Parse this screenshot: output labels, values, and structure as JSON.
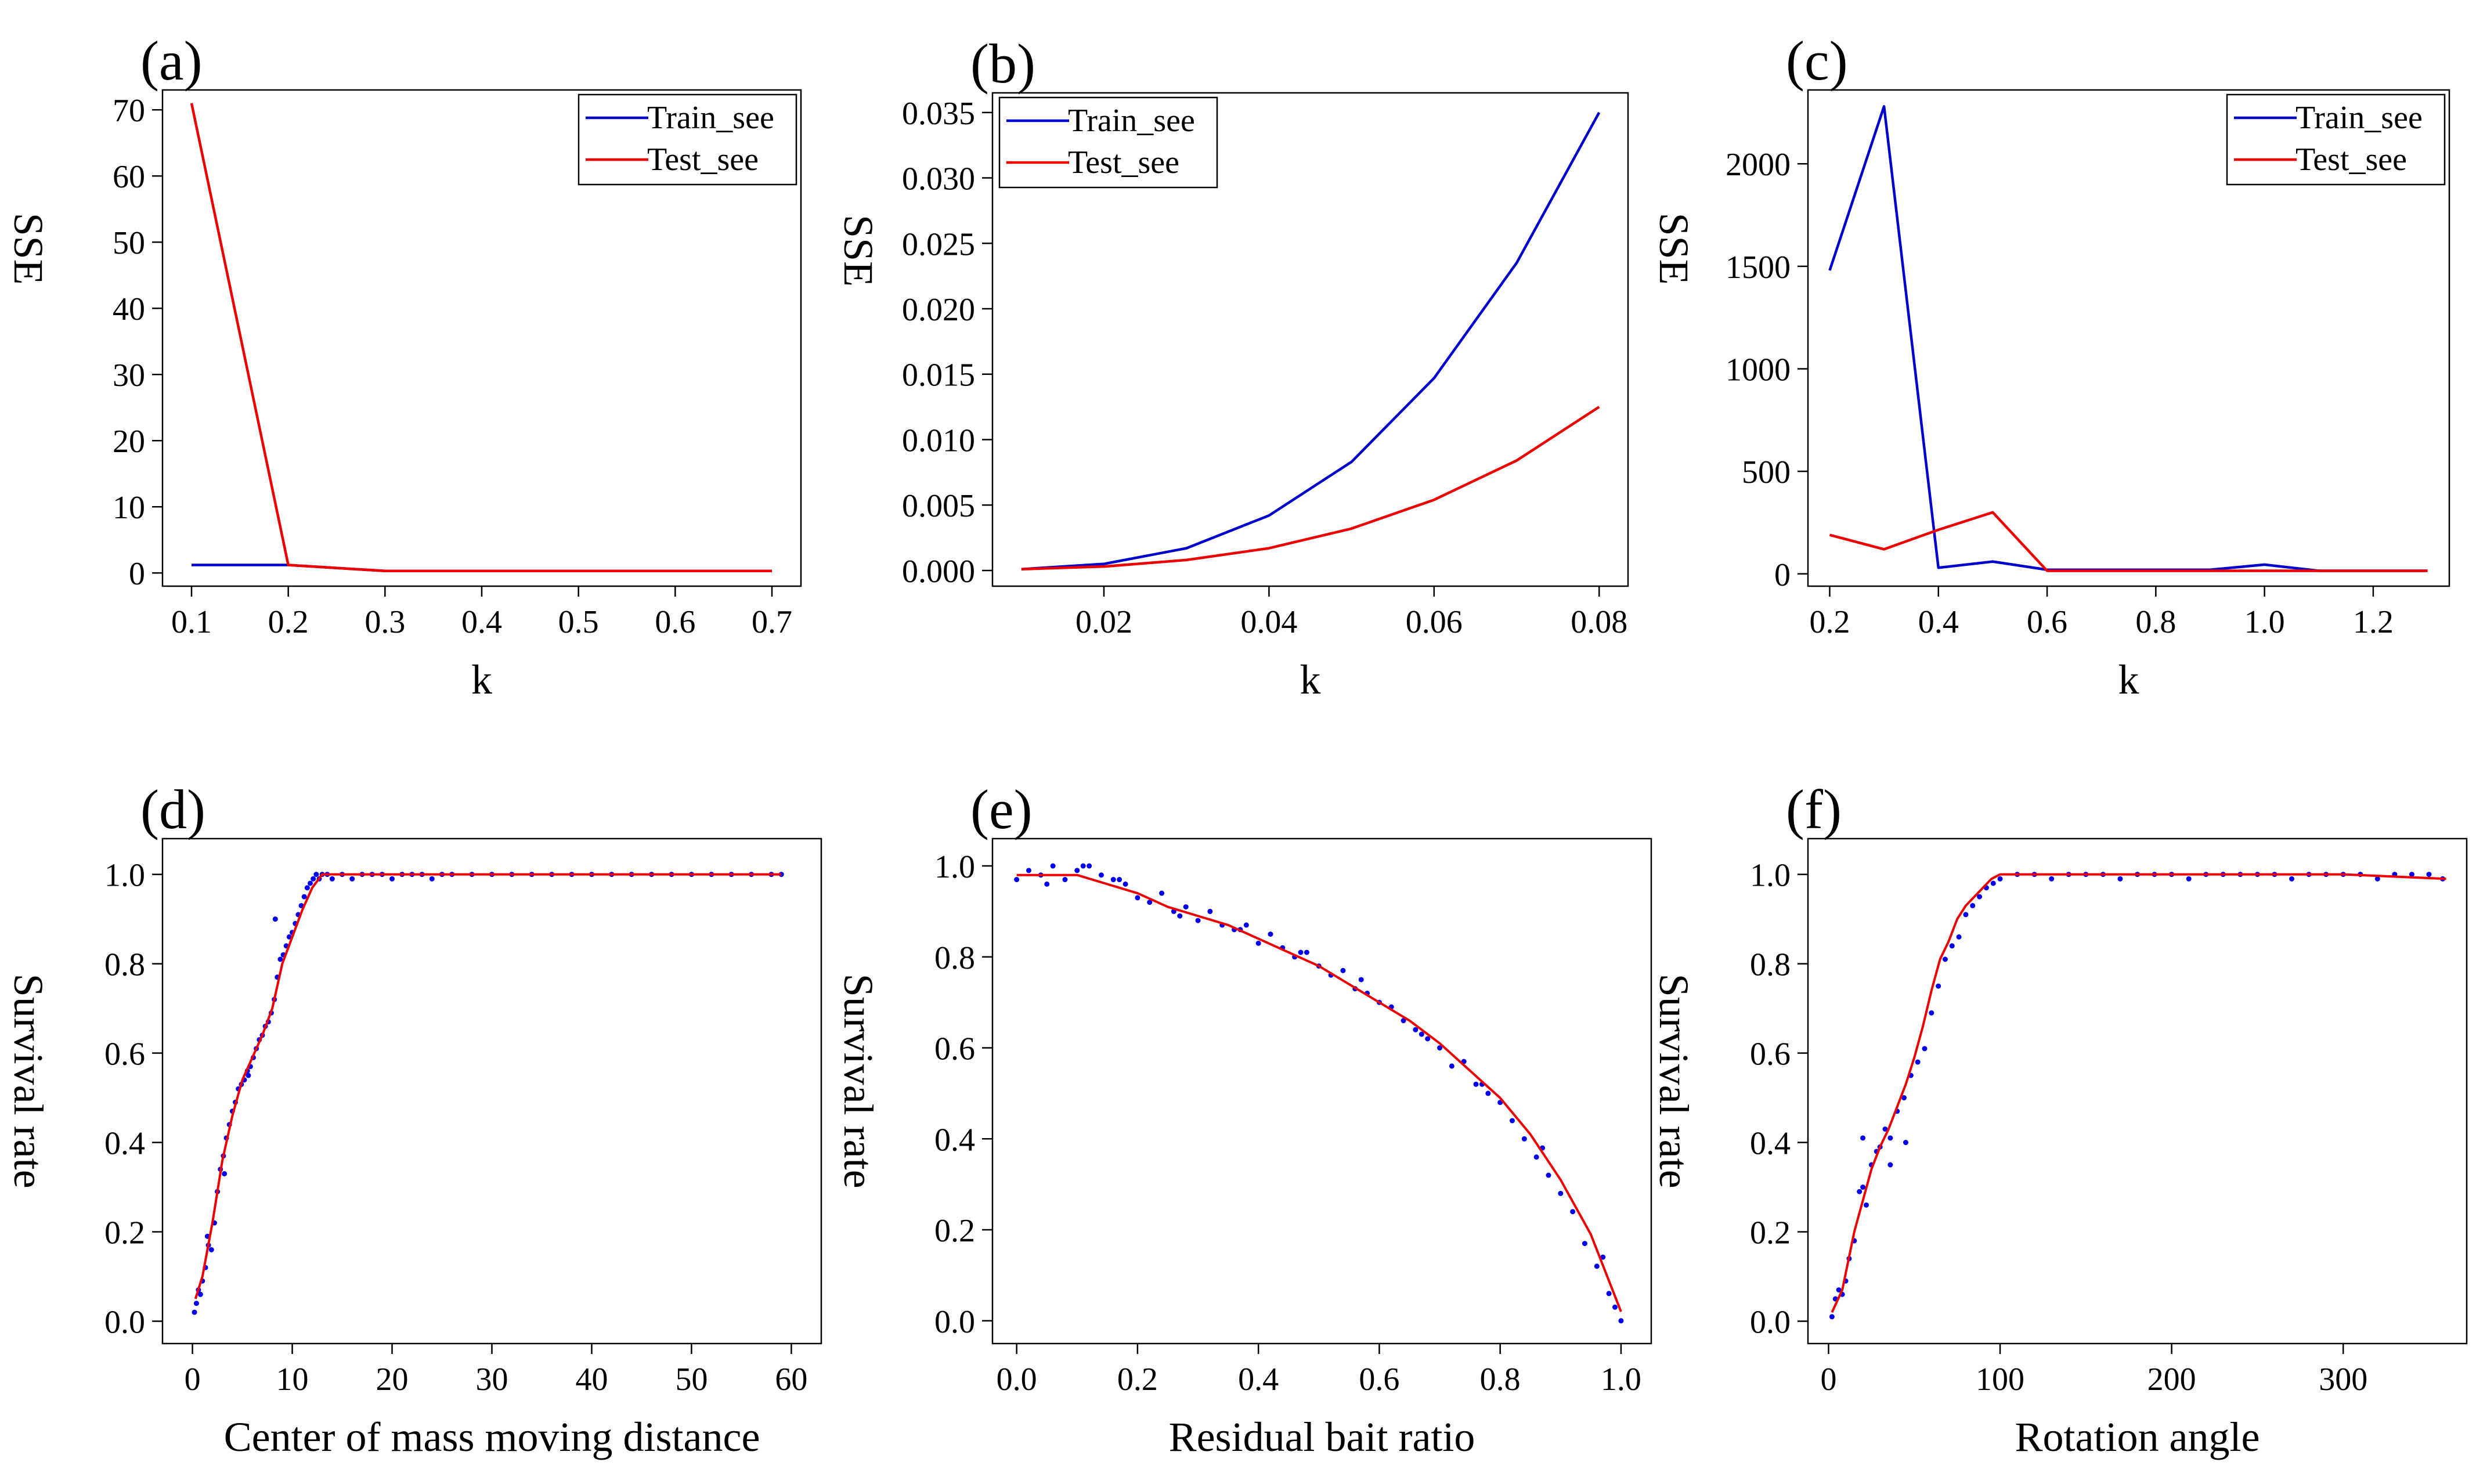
{
  "chart_data": [
    {
      "panel": "(a)",
      "type": "line",
      "xlabel": "k",
      "ylabel": "SSE",
      "xlim": [
        0.07,
        0.73
      ],
      "ylim": [
        -2,
        73
      ],
      "xticks": [
        0.1,
        0.2,
        0.3,
        0.4,
        0.5,
        0.6,
        0.7
      ],
      "xtick_labels": [
        "0.1",
        "0.2",
        "0.3",
        "0.4",
        "0.5",
        "0.6",
        "0.7"
      ],
      "yticks": [
        0,
        10,
        20,
        30,
        40,
        50,
        60,
        70
      ],
      "ytick_labels": [
        "0",
        "10",
        "20",
        "30",
        "40",
        "50",
        "60",
        "70"
      ],
      "legend": "top-right",
      "series": [
        {
          "name": "Train_see",
          "color": "#0000cc",
          "x": [
            0.1,
            0.2,
            0.3,
            0.4,
            0.5,
            0.6,
            0.7
          ],
          "values": [
            1.2,
            1.2,
            0.3,
            0.3,
            0.3,
            0.3,
            0.3
          ]
        },
        {
          "name": "Test_see",
          "color": "#ee0000",
          "x": [
            0.1,
            0.2,
            0.3,
            0.4,
            0.5,
            0.6,
            0.7
          ],
          "values": [
            71,
            1.2,
            0.3,
            0.3,
            0.3,
            0.3,
            0.3
          ]
        }
      ]
    },
    {
      "panel": "(b)",
      "type": "line",
      "xlabel": "k",
      "ylabel": "SSE",
      "xlim": [
        0.0065,
        0.0835
      ],
      "ylim": [
        -0.0012,
        0.0365
      ],
      "xticks": [
        0.02,
        0.04,
        0.06,
        0.08
      ],
      "xtick_labels": [
        "0.02",
        "0.04",
        "0.06",
        "0.08"
      ],
      "yticks": [
        0,
        0.005,
        0.01,
        0.015,
        0.02,
        0.025,
        0.03,
        0.035
      ],
      "ytick_labels": [
        "0.000",
        "0.005",
        "0.010",
        "0.015",
        "0.020",
        "0.025",
        "0.030",
        "0.035"
      ],
      "legend": "top-left",
      "series": [
        {
          "name": "Train_see",
          "color": "#0000cc",
          "x": [
            0.01,
            0.02,
            0.03,
            0.04,
            0.05,
            0.06,
            0.07,
            0.08
          ],
          "values": [
            0.0001,
            0.0005,
            0.0017,
            0.0042,
            0.0083,
            0.0147,
            0.0235,
            0.035
          ]
        },
        {
          "name": "Test_see",
          "color": "#ee0000",
          "x": [
            0.01,
            0.02,
            0.03,
            0.04,
            0.05,
            0.06,
            0.07,
            0.08
          ],
          "values": [
            0.0001,
            0.0003,
            0.0008,
            0.0017,
            0.0032,
            0.0054,
            0.0084,
            0.0125
          ]
        }
      ]
    },
    {
      "panel": "(c)",
      "type": "line",
      "xlabel": "k",
      "ylabel": "SSE",
      "xlim": [
        0.16,
        1.34
      ],
      "ylim": [
        -60,
        2360
      ],
      "xticks": [
        0.2,
        0.4,
        0.6,
        0.8,
        1.0,
        1.2
      ],
      "xtick_labels": [
        "0.2",
        "0.4",
        "0.6",
        "0.8",
        "1.0",
        "1.2"
      ],
      "yticks": [
        0,
        500,
        1000,
        1500,
        2000
      ],
      "ytick_labels": [
        "0",
        "500",
        "1000",
        "1500",
        "2000"
      ],
      "legend": "top-right",
      "series": [
        {
          "name": "Train_see",
          "color": "#0000cc",
          "x": [
            0.2,
            0.3,
            0.4,
            0.5,
            0.6,
            0.7,
            0.8,
            0.9,
            1.0,
            1.1,
            1.2,
            1.3
          ],
          "values": [
            1480,
            2280,
            30,
            60,
            20,
            20,
            20,
            20,
            45,
            15,
            15,
            15
          ]
        },
        {
          "name": "Test_see",
          "color": "#ee0000",
          "x": [
            0.2,
            0.3,
            0.4,
            0.5,
            0.6,
            0.7,
            0.8,
            0.9,
            1.0,
            1.1,
            1.2,
            1.3
          ],
          "values": [
            190,
            120,
            215,
            300,
            15,
            15,
            15,
            15,
            15,
            15,
            15,
            15
          ]
        }
      ]
    },
    {
      "panel": "(d)",
      "type": "scatter",
      "xlabel": "Center of mass moving distance",
      "ylabel": "Survival rate",
      "xlim": [
        -3,
        63
      ],
      "ylim": [
        -0.05,
        1.08
      ],
      "xticks": [
        0,
        10,
        20,
        30,
        40,
        50,
        60
      ],
      "xtick_labels": [
        "0",
        "10",
        "20",
        "30",
        "40",
        "50",
        "60"
      ],
      "yticks": [
        0,
        0.2,
        0.4,
        0.6,
        0.8,
        1.0
      ],
      "ytick_labels": [
        "0.0",
        "0.2",
        "0.4",
        "0.6",
        "0.8",
        "1.0"
      ],
      "fit_color": "#ee0000",
      "point_color": "#0000ee",
      "fit_x": [
        0.3,
        1,
        2,
        3,
        4,
        5,
        6,
        7,
        8,
        9,
        10,
        11,
        12,
        13,
        15,
        20,
        30,
        40,
        50,
        59
      ],
      "fit_y": [
        0.05,
        0.1,
        0.22,
        0.36,
        0.46,
        0.54,
        0.59,
        0.64,
        0.7,
        0.8,
        0.86,
        0.92,
        0.97,
        1.0,
        1.0,
        1.0,
        1.0,
        1.0,
        1.0,
        1.0
      ],
      "points_x": [
        0.2,
        0.4,
        0.6,
        0.8,
        1.0,
        1.3,
        1.6,
        1.9,
        2.2,
        2.5,
        2.8,
        3.1,
        3.4,
        3.7,
        4.0,
        4.3,
        4.6,
        4.9,
        5.2,
        5.5,
        5.8,
        6.1,
        6.4,
        6.7,
        7.0,
        7.3,
        7.6,
        7.9,
        8.2,
        8.5,
        8.8,
        9.1,
        9.4,
        9.7,
        10.0,
        10.3,
        10.6,
        10.9,
        11.2,
        11.5,
        11.8,
        12.1,
        12.4,
        12.7,
        13.0,
        13.5,
        14.0,
        15.0,
        16.0,
        17.0,
        18.0,
        19.0,
        20.0,
        21.0,
        22.0,
        23.0,
        24.0,
        25.0,
        26.0,
        28.0,
        30.0,
        32.0,
        34.0,
        36.0,
        38.0,
        40.0,
        42.0,
        44.0,
        46.0,
        48.0,
        50.0,
        52.0,
        54.0,
        56.0,
        58.0,
        59.0,
        8.3,
        1.5,
        5.6,
        3.2
      ],
      "points_y": [
        0.02,
        0.04,
        0.07,
        0.06,
        0.09,
        0.12,
        0.17,
        0.16,
        0.22,
        0.29,
        0.34,
        0.37,
        0.41,
        0.44,
        0.47,
        0.49,
        0.52,
        0.53,
        0.54,
        0.56,
        0.57,
        0.59,
        0.61,
        0.63,
        0.64,
        0.66,
        0.67,
        0.69,
        0.72,
        0.77,
        0.81,
        0.82,
        0.84,
        0.86,
        0.87,
        0.89,
        0.91,
        0.93,
        0.95,
        0.97,
        0.98,
        0.99,
        1.0,
        0.99,
        1.0,
        1.0,
        0.99,
        1.0,
        0.99,
        1.0,
        1.0,
        1.0,
        0.99,
        1.0,
        1.0,
        1.0,
        0.99,
        1.0,
        1.0,
        1.0,
        1.0,
        1.0,
        1.0,
        1.0,
        1.0,
        1.0,
        1.0,
        1.0,
        1.0,
        1.0,
        1.0,
        1.0,
        1.0,
        1.0,
        1.0,
        1.0,
        0.9,
        0.19,
        0.55,
        0.33
      ]
    },
    {
      "panel": "(e)",
      "type": "scatter",
      "xlabel": "Residual bait ratio",
      "ylabel": "Survival rate",
      "xlim": [
        -0.04,
        1.05
      ],
      "ylim": [
        -0.05,
        1.06
      ],
      "xticks": [
        0.0,
        0.2,
        0.4,
        0.6,
        0.8,
        1.0
      ],
      "xtick_labels": [
        "0.0",
        "0.2",
        "0.4",
        "0.6",
        "0.8",
        "1.0"
      ],
      "yticks": [
        0,
        0.2,
        0.4,
        0.6,
        0.8,
        1.0
      ],
      "ytick_labels": [
        "0.0",
        "0.2",
        "0.4",
        "0.6",
        "0.8",
        "1.0"
      ],
      "fit_color": "#ee0000",
      "point_color": "#0000ee",
      "fit_x": [
        0.0,
        0.05,
        0.1,
        0.15,
        0.2,
        0.25,
        0.3,
        0.35,
        0.4,
        0.45,
        0.5,
        0.55,
        0.6,
        0.65,
        0.7,
        0.75,
        0.8,
        0.85,
        0.9,
        0.95,
        1.0
      ],
      "fit_y": [
        0.98,
        0.98,
        0.98,
        0.96,
        0.94,
        0.91,
        0.89,
        0.87,
        0.84,
        0.81,
        0.78,
        0.74,
        0.7,
        0.66,
        0.61,
        0.55,
        0.49,
        0.41,
        0.31,
        0.19,
        0.02
      ],
      "points_x": [
        0.0,
        0.02,
        0.04,
        0.06,
        0.08,
        0.1,
        0.12,
        0.14,
        0.16,
        0.18,
        0.2,
        0.22,
        0.24,
        0.26,
        0.28,
        0.3,
        0.32,
        0.34,
        0.36,
        0.38,
        0.4,
        0.42,
        0.44,
        0.46,
        0.48,
        0.5,
        0.52,
        0.54,
        0.56,
        0.58,
        0.6,
        0.62,
        0.64,
        0.66,
        0.68,
        0.7,
        0.72,
        0.74,
        0.76,
        0.78,
        0.8,
        0.82,
        0.84,
        0.86,
        0.88,
        0.9,
        0.92,
        0.94,
        0.96,
        0.98,
        0.99,
        1.0,
        0.05,
        0.11,
        0.17,
        0.27,
        0.37,
        0.47,
        0.57,
        0.67,
        0.77,
        0.87,
        0.97
      ],
      "points_y": [
        0.97,
        0.99,
        0.98,
        1.0,
        0.97,
        0.99,
        1.0,
        0.98,
        0.97,
        0.96,
        0.93,
        0.92,
        0.94,
        0.9,
        0.91,
        0.88,
        0.9,
        0.87,
        0.86,
        0.87,
        0.83,
        0.85,
        0.82,
        0.8,
        0.81,
        0.78,
        0.76,
        0.77,
        0.73,
        0.72,
        0.7,
        0.69,
        0.66,
        0.64,
        0.62,
        0.6,
        0.56,
        0.57,
        0.52,
        0.5,
        0.48,
        0.44,
        0.4,
        0.36,
        0.32,
        0.28,
        0.24,
        0.17,
        0.12,
        0.06,
        0.03,
        0.0,
        0.96,
        1.0,
        0.97,
        0.89,
        0.86,
        0.81,
        0.75,
        0.63,
        0.52,
        0.38,
        0.14
      ]
    },
    {
      "panel": "(f)",
      "type": "scatter",
      "xlabel": "Rotation angle",
      "ylabel": "Survival rate",
      "xlim": [
        -12,
        372
      ],
      "ylim": [
        -0.05,
        1.08
      ],
      "xticks": [
        0,
        100,
        200,
        300
      ],
      "xtick_labels": [
        "0",
        "100",
        "200",
        "300"
      ],
      "yticks": [
        0,
        0.2,
        0.4,
        0.6,
        0.8,
        1.0
      ],
      "ytick_labels": [
        "0.0",
        "0.2",
        "0.4",
        "0.6",
        "0.8",
        "1.0"
      ],
      "fit_color": "#ee0000",
      "point_color": "#0000ee",
      "fit_x": [
        2,
        8,
        15,
        20,
        25,
        30,
        35,
        40,
        45,
        50,
        55,
        60,
        65,
        70,
        75,
        80,
        85,
        90,
        95,
        100,
        150,
        200,
        250,
        300,
        360
      ],
      "fit_y": [
        0.02,
        0.07,
        0.2,
        0.27,
        0.34,
        0.39,
        0.43,
        0.48,
        0.53,
        0.59,
        0.66,
        0.74,
        0.81,
        0.85,
        0.9,
        0.93,
        0.95,
        0.97,
        0.99,
        1.0,
        1.0,
        1.0,
        1.0,
        1.0,
        0.99
      ],
      "points_x": [
        2,
        4,
        6,
        8,
        10,
        12,
        15,
        18,
        20,
        22,
        25,
        28,
        30,
        33,
        36,
        40,
        44,
        48,
        52,
        56,
        60,
        64,
        68,
        72,
        76,
        80,
        84,
        88,
        92,
        96,
        100,
        110,
        120,
        130,
        140,
        150,
        160,
        170,
        180,
        190,
        200,
        210,
        220,
        230,
        240,
        250,
        260,
        270,
        280,
        290,
        300,
        310,
        320,
        330,
        340,
        350,
        358,
        20,
        36,
        45
      ],
      "points_y": [
        0.01,
        0.05,
        0.07,
        0.06,
        0.09,
        0.14,
        0.18,
        0.29,
        0.3,
        0.26,
        0.35,
        0.38,
        0.39,
        0.43,
        0.41,
        0.47,
        0.5,
        0.55,
        0.58,
        0.61,
        0.69,
        0.75,
        0.81,
        0.84,
        0.86,
        0.91,
        0.93,
        0.95,
        0.97,
        0.98,
        0.99,
        1.0,
        1.0,
        0.99,
        1.0,
        1.0,
        1.0,
        0.99,
        1.0,
        1.0,
        1.0,
        0.99,
        1.0,
        1.0,
        1.0,
        1.0,
        1.0,
        0.99,
        1.0,
        1.0,
        1.0,
        1.0,
        0.99,
        1.0,
        1.0,
        1.0,
        0.99,
        0.41,
        0.35,
        0.4
      ]
    }
  ]
}
